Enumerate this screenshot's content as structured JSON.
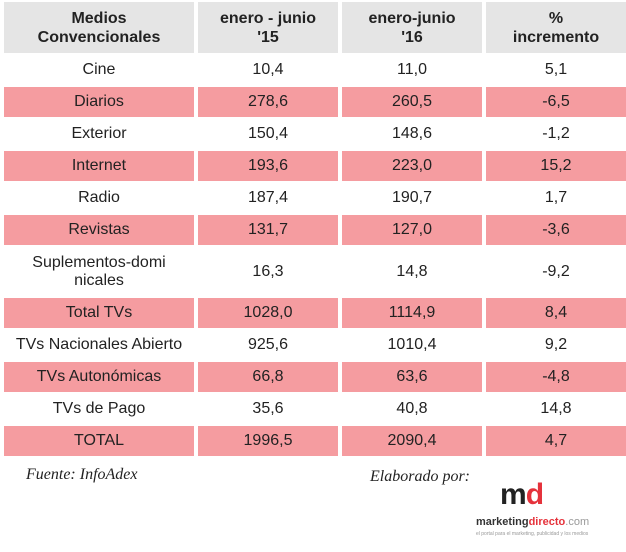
{
  "chart_data": {
    "type": "table",
    "columns": [
      "Medios Convencionales",
      "enero - junio '15",
      "enero-junio '16",
      "% incremento"
    ],
    "rows": [
      {
        "medio": "Cine",
        "h1_15": "10,4",
        "h1_16": "11,0",
        "incremento": "5,1"
      },
      {
        "medio": "Diarios",
        "h1_15": "278,6",
        "h1_16": "260,5",
        "incremento": "-6,5"
      },
      {
        "medio": "Exterior",
        "h1_15": "150,4",
        "h1_16": "148,6",
        "incremento": "-1,2"
      },
      {
        "medio": "Internet",
        "h1_15": "193,6",
        "h1_16": "223,0",
        "incremento": "15,2"
      },
      {
        "medio": "Radio",
        "h1_15": "187,4",
        "h1_16": "190,7",
        "incremento": "1,7"
      },
      {
        "medio": "Revistas",
        "h1_15": "131,7",
        "h1_16": "127,0",
        "incremento": "-3,6"
      },
      {
        "medio": "Suplementos-dominicales",
        "h1_15": "16,3",
        "h1_16": "14,8",
        "incremento": "-9,2"
      },
      {
        "medio": "Total TVs",
        "h1_15": "1028,0",
        "h1_16": "1114,9",
        "incremento": "8,4"
      },
      {
        "medio": "TVs Nacionales Abierto",
        "h1_15": "925,6",
        "h1_16": "1010,4",
        "incremento": "9,2"
      },
      {
        "medio": "TVs Autonómicas",
        "h1_15": "66,8",
        "h1_16": "63,6",
        "incremento": "-4,8"
      },
      {
        "medio": "TVs de Pago",
        "h1_15": "35,6",
        "h1_16": "40,8",
        "incremento": "14,8"
      },
      {
        "medio": "TOTAL",
        "h1_15": "1996,5",
        "h1_16": "2090,4",
        "incremento": "4,7"
      }
    ]
  },
  "header": {
    "col1_line1": "Medios",
    "col1_line2": "Convencionales",
    "col2_line1": "enero - junio",
    "col2_line2": "'15",
    "col3_line1": "enero-junio",
    "col3_line2": "'16",
    "col4_line1": "%",
    "col4_line2": "incremento"
  },
  "footer": {
    "source": "Fuente: InfoAdex",
    "credit": "Elaborado por:",
    "logo_m": "m",
    "logo_d": "d",
    "logo_text_a": "marketing",
    "logo_text_b": "directo",
    "logo_text_c": ".com",
    "logo_tagline": "el portal para el marketing, publicidad y los medios"
  },
  "colors": {
    "header_bg": "#e5e5e5",
    "highlight_row": "#f59ca0",
    "brand_red": "#e5323b"
  }
}
